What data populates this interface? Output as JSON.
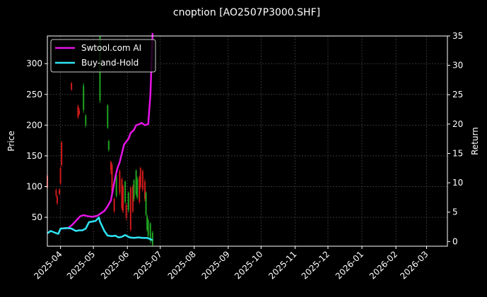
{
  "chart_data": {
    "type": "line",
    "title": "cnoption [AO2507P3000.SHF]",
    "xlabel": "",
    "ylabel": "Price",
    "y2label": "Return",
    "xlim": [
      "2025-03-20",
      "2026-03-20"
    ],
    "ylim": [
      3,
      345
    ],
    "y2lim": [
      -0.8,
      35
    ],
    "grid": true,
    "legend_position": "top-left",
    "x_ticks": [
      "2025-04",
      "2025-05",
      "2025-06",
      "2025-07",
      "2025-08",
      "2025-09",
      "2025-10",
      "2025-11",
      "2025-12",
      "2026-01",
      "2026-02",
      "2026-03"
    ],
    "y_ticks": [
      "50",
      "100",
      "150",
      "200",
      "250",
      "300"
    ],
    "y2_ticks": [
      "0",
      "5",
      "10",
      "15",
      "20",
      "25",
      "30",
      "35"
    ],
    "legend": [
      {
        "label": "Swtool.com AI",
        "color": "#e614e6"
      },
      {
        "label": "Buy-and-Hold",
        "color": "#2ee6f5"
      }
    ],
    "colors": {
      "up": "#1fa31f",
      "down": "#d11a1a",
      "background": "#000000"
    },
    "series": [
      {
        "name": "Swtool.com AI",
        "color": "#e614e6",
        "axis": "right",
        "x": [
          "2025-04-01",
          "2025-04-08",
          "2025-04-12",
          "2025-04-16",
          "2025-04-19",
          "2025-04-22",
          "2025-04-26",
          "2025-04-30",
          "2025-05-05",
          "2025-05-07",
          "2025-05-11",
          "2025-05-14",
          "2025-05-17",
          "2025-05-19",
          "2025-05-21",
          "2025-05-23",
          "2025-05-25",
          "2025-05-27",
          "2025-05-29",
          "2025-05-31",
          "2025-06-02",
          "2025-06-04",
          "2025-06-07",
          "2025-06-09",
          "2025-06-12",
          "2025-06-14",
          "2025-06-17",
          "2025-06-20",
          "2025-06-22",
          "2025-06-23",
          "2025-06-24"
        ],
        "values": [
          2.2,
          2.3,
          2.9,
          3.7,
          4.3,
          4.5,
          4.3,
          4.2,
          4.4,
          4.7,
          5.2,
          6.0,
          7.0,
          9.0,
          11.0,
          12.5,
          13.5,
          15.0,
          16.5,
          17.0,
          17.5,
          18.5,
          19.0,
          19.8,
          20.0,
          20.2,
          19.8,
          20.0,
          25.0,
          30.0,
          35.5
        ]
      },
      {
        "name": "Buy-and-Hold",
        "color": "#2ee6f5",
        "axis": "right",
        "x": [
          "2025-03-20",
          "2025-03-23",
          "2025-03-27",
          "2025-03-30",
          "2025-04-01",
          "2025-04-07",
          "2025-04-11",
          "2025-04-15",
          "2025-04-18",
          "2025-04-21",
          "2025-04-24",
          "2025-04-27",
          "2025-04-30",
          "2025-05-03",
          "2025-05-06",
          "2025-05-07",
          "2025-05-11",
          "2025-05-14",
          "2025-05-18",
          "2025-05-21",
          "2025-05-24",
          "2025-05-27",
          "2025-05-30",
          "2025-06-03",
          "2025-06-07",
          "2025-06-11",
          "2025-06-15",
          "2025-06-19",
          "2025-06-22",
          "2025-06-24"
        ],
        "values": [
          1.4,
          1.8,
          1.5,
          1.3,
          2.2,
          2.3,
          2.2,
          1.8,
          1.9,
          1.9,
          2.2,
          3.3,
          3.4,
          3.5,
          4.1,
          3.4,
          1.8,
          1.0,
          0.9,
          1.0,
          0.7,
          0.8,
          1.1,
          0.7,
          0.6,
          0.7,
          0.6,
          0.6,
          0.4,
          0.2
        ]
      }
    ],
    "candles": [
      {
        "x": "2025-03-20",
        "open": 118,
        "close": 98,
        "high": 121,
        "low": 96
      },
      {
        "x": "2025-03-28",
        "open": 94,
        "close": 86,
        "high": 97,
        "low": 83
      },
      {
        "x": "2025-03-29",
        "open": 84,
        "close": 73,
        "high": 86,
        "low": 70
      },
      {
        "x": "2025-03-31",
        "open": 95,
        "close": 88,
        "high": 97,
        "low": 86
      },
      {
        "x": "2025-04-01",
        "open": 130,
        "close": 105,
        "high": 132,
        "low": 103
      },
      {
        "x": "2025-04-02",
        "open": 172,
        "close": 135,
        "high": 174,
        "low": 132
      },
      {
        "x": "2025-04-11",
        "open": 268,
        "close": 258,
        "high": 270,
        "low": 256
      },
      {
        "x": "2025-04-17",
        "open": 231,
        "close": 213,
        "high": 233,
        "low": 210
      },
      {
        "x": "2025-04-18",
        "open": 224,
        "close": 218,
        "high": 228,
        "low": 216
      },
      {
        "x": "2025-04-22",
        "open": 225,
        "close": 264,
        "high": 268,
        "low": 220
      },
      {
        "x": "2025-04-24",
        "open": 200,
        "close": 215,
        "high": 218,
        "low": 196
      },
      {
        "x": "2025-05-07",
        "open": 240,
        "close": 345,
        "high": 345,
        "low": 236
      },
      {
        "x": "2025-05-14",
        "open": 196,
        "close": 232,
        "high": 234,
        "low": 194
      },
      {
        "x": "2025-05-15",
        "open": 160,
        "close": 174,
        "high": 176,
        "low": 157
      },
      {
        "x": "2025-05-17",
        "open": 140,
        "close": 127,
        "high": 142,
        "low": 120
      },
      {
        "x": "2025-05-18",
        "open": 135,
        "close": 88,
        "high": 138,
        "low": 85
      },
      {
        "x": "2025-05-20",
        "open": 80,
        "close": 60,
        "high": 82,
        "low": 57
      },
      {
        "x": "2025-05-22",
        "open": 85,
        "close": 118,
        "high": 121,
        "low": 82
      },
      {
        "x": "2025-05-25",
        "open": 125,
        "close": 90,
        "high": 128,
        "low": 86
      },
      {
        "x": "2025-05-27",
        "open": 112,
        "close": 65,
        "high": 115,
        "low": 62
      },
      {
        "x": "2025-05-28",
        "open": 100,
        "close": 60,
        "high": 103,
        "low": 57
      },
      {
        "x": "2025-05-30",
        "open": 75,
        "close": 108,
        "high": 110,
        "low": 72
      },
      {
        "x": "2025-05-31",
        "open": 70,
        "close": 50,
        "high": 73,
        "low": 45
      },
      {
        "x": "2025-06-02",
        "open": 62,
        "close": 90,
        "high": 92,
        "low": 58
      },
      {
        "x": "2025-06-04",
        "open": 98,
        "close": 30,
        "high": 100,
        "low": 27
      },
      {
        "x": "2025-06-06",
        "open": 100,
        "close": 60,
        "high": 103,
        "low": 57
      },
      {
        "x": "2025-06-07",
        "open": 80,
        "close": 110,
        "high": 112,
        "low": 76
      },
      {
        "x": "2025-06-09",
        "open": 88,
        "close": 126,
        "high": 128,
        "low": 85
      },
      {
        "x": "2025-06-10",
        "open": 82,
        "close": 112,
        "high": 116,
        "low": 79
      },
      {
        "x": "2025-06-12",
        "open": 115,
        "close": 75,
        "high": 118,
        "low": 72
      },
      {
        "x": "2025-06-13",
        "open": 130,
        "close": 100,
        "high": 132,
        "low": 96
      },
      {
        "x": "2025-06-15",
        "open": 125,
        "close": 95,
        "high": 128,
        "low": 92
      },
      {
        "x": "2025-06-17",
        "open": 108,
        "close": 80,
        "high": 112,
        "low": 76
      },
      {
        "x": "2025-06-18",
        "open": 55,
        "close": 90,
        "high": 92,
        "low": 52
      },
      {
        "x": "2025-06-19",
        "open": 30,
        "close": 52,
        "high": 55,
        "low": 27
      },
      {
        "x": "2025-06-20",
        "open": 20,
        "close": 45,
        "high": 48,
        "low": 17
      },
      {
        "x": "2025-06-22",
        "open": 12,
        "close": 40,
        "high": 42,
        "low": 8
      },
      {
        "x": "2025-06-24",
        "open": 5,
        "close": 25,
        "high": 28,
        "low": 3
      }
    ]
  }
}
